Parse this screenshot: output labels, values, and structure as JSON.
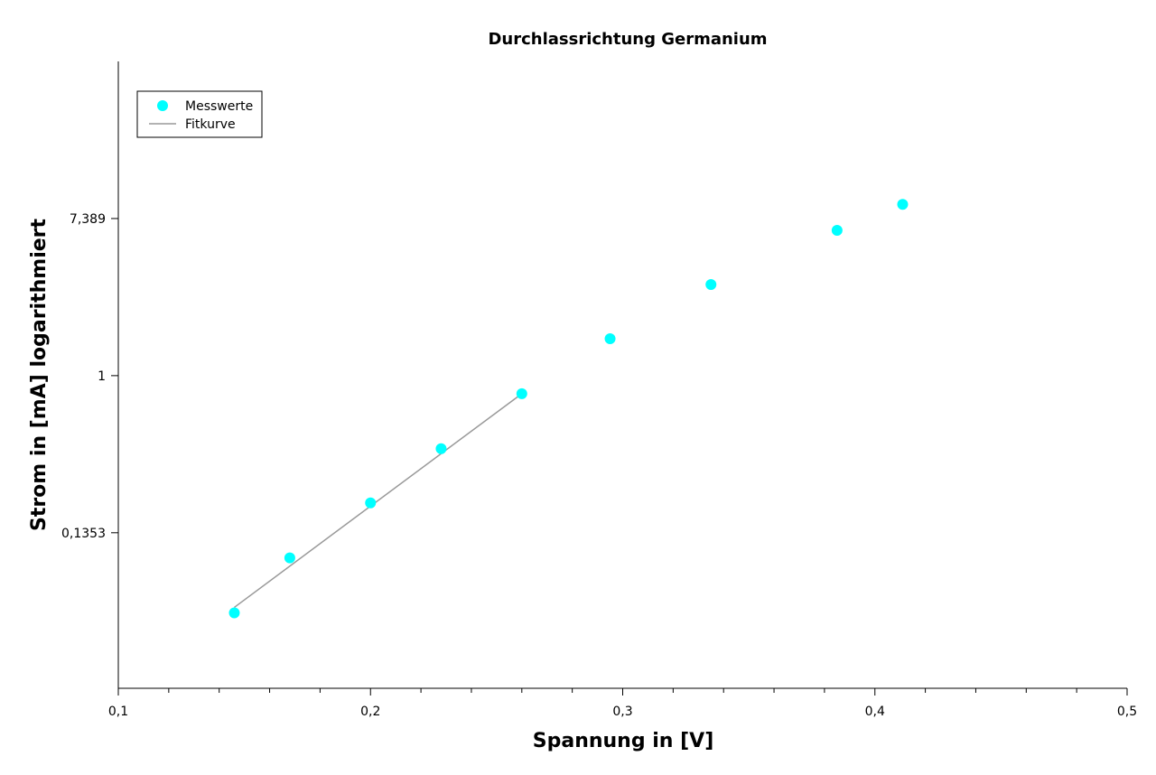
{
  "chart_data": {
    "type": "scatter",
    "title": "Durchlassrichtung Germanium",
    "xlabel": "Spannung in [V]",
    "ylabel": "Strom in [mA] logarithmiert",
    "xlim": [
      0.1,
      0.5
    ],
    "ylim_ln": [
      -3.98,
      4.0
    ],
    "x_ticks": [
      0.1,
      0.2,
      0.3,
      0.4,
      0.5
    ],
    "x_tick_labels": [
      "0,1",
      "0,2",
      "0,3",
      "0,4",
      "0,5"
    ],
    "x_minor_step": 0.02,
    "y_ticks_ln": [
      2,
      0,
      -2
    ],
    "y_tick_labels": [
      "7,389",
      "1",
      "0,1353"
    ],
    "legend_position": "top-left",
    "colors": {
      "points": "#00ffff",
      "fit": "#999999",
      "axis": "#000000",
      "legend_border": "#000000"
    },
    "series": [
      {
        "name": "Messwerte",
        "kind": "points",
        "x": [
          0.146,
          0.168,
          0.2,
          0.228,
          0.26,
          0.295,
          0.335,
          0.385,
          0.411
        ],
        "ln_y": [
          -3.02,
          -2.32,
          -1.62,
          -0.93,
          -0.23,
          0.47,
          1.16,
          1.85,
          2.18
        ]
      },
      {
        "name": "Fitkurve",
        "kind": "line",
        "x": [
          0.146,
          0.26
        ],
        "ln_y": [
          -2.95,
          -0.23
        ]
      }
    ]
  }
}
